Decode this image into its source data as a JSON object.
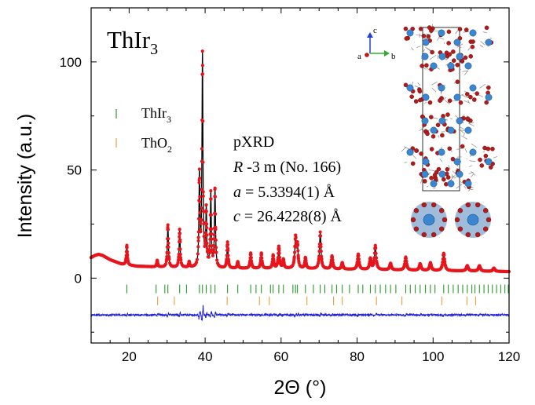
{
  "chart_data": {
    "type": "scatter",
    "title": "ThIr",
    "title_sub": "3",
    "xlabel": "2Θ (°)",
    "ylabel": "Intensity (a.u.)",
    "xlim": [
      10,
      120
    ],
    "ylim": [
      -30,
      125
    ],
    "xticks": [
      20,
      40,
      60,
      80,
      100,
      120
    ],
    "yticks": [
      0,
      50,
      100
    ],
    "legend": [
      {
        "name": "ThIr",
        "sub": "3",
        "color": "#2a9a2a"
      },
      {
        "name": "ThO",
        "sub": "2",
        "color": "#f39a3c"
      }
    ],
    "annotations": {
      "method": "pXRD",
      "space_group_symbol": "R",
      "space_group_rest": " -3 m (No. 166)",
      "a_param": "a",
      "a_value": " = 5.3394(1) Å",
      "c_param": "c",
      "c_value": " = 26.4228(8) Å"
    },
    "axes_labels_inset": {
      "a": "a",
      "b": "b",
      "c": "c"
    },
    "colors": {
      "observed": "#e8141c",
      "calculated": "#000000",
      "difference": "#1f1fd6",
      "thir3_ticks": "#2a9a2a",
      "tho2_ticks": "#f39a3c"
    },
    "background": [
      [
        10,
        9.5
      ],
      [
        11,
        10.5
      ],
      [
        12,
        11
      ],
      [
        13,
        10.5
      ],
      [
        15,
        8.5
      ],
      [
        18,
        6.5
      ],
      [
        22,
        5.5
      ],
      [
        30,
        5
      ],
      [
        45,
        4.5
      ],
      [
        60,
        4.5
      ],
      [
        80,
        4
      ],
      [
        100,
        3.5
      ],
      [
        120,
        3
      ]
    ],
    "peaks": [
      {
        "x": 19.4,
        "h": 9,
        "w": 0.15
      },
      {
        "x": 27.4,
        "h": 3,
        "w": 0.15
      },
      {
        "x": 30.2,
        "h": 19.5,
        "w": 0.16
      },
      {
        "x": 33.3,
        "h": 17.5,
        "w": 0.16
      },
      {
        "x": 35.8,
        "h": 2.5,
        "w": 0.15
      },
      {
        "x": 38.5,
        "h": 42,
        "w": 0.15
      },
      {
        "x": 39.3,
        "h": 98,
        "w": 0.15
      },
      {
        "x": 40.3,
        "h": 26,
        "w": 0.15
      },
      {
        "x": 41.5,
        "h": 34,
        "w": 0.15
      },
      {
        "x": 42.6,
        "h": 36,
        "w": 0.16
      },
      {
        "x": 45.9,
        "h": 12,
        "w": 0.17
      },
      {
        "x": 48.6,
        "h": 3,
        "w": 0.17
      },
      {
        "x": 52.0,
        "h": 7,
        "w": 0.18
      },
      {
        "x": 54.8,
        "h": 7,
        "w": 0.18
      },
      {
        "x": 57.9,
        "h": 6,
        "w": 0.18
      },
      {
        "x": 59.4,
        "h": 10,
        "w": 0.2
      },
      {
        "x": 60.6,
        "h": 4,
        "w": 0.18
      },
      {
        "x": 63.8,
        "h": 14,
        "w": 0.22
      },
      {
        "x": 64.3,
        "h": 10,
        "w": 0.2
      },
      {
        "x": 66.4,
        "h": 5,
        "w": 0.2
      },
      {
        "x": 70.3,
        "h": 17,
        "w": 0.22
      },
      {
        "x": 73.4,
        "h": 6,
        "w": 0.22
      },
      {
        "x": 76.1,
        "h": 3,
        "w": 0.22
      },
      {
        "x": 80.3,
        "h": 7,
        "w": 0.24
      },
      {
        "x": 83.5,
        "h": 5,
        "w": 0.24
      },
      {
        "x": 84.8,
        "h": 11,
        "w": 0.25
      },
      {
        "x": 88.8,
        "h": 3,
        "w": 0.25
      },
      {
        "x": 92.8,
        "h": 6,
        "w": 0.26
      },
      {
        "x": 96.6,
        "h": 3,
        "w": 0.27
      },
      {
        "x": 99.3,
        "h": 3.5,
        "w": 0.27
      },
      {
        "x": 102.8,
        "h": 8,
        "w": 0.28
      },
      {
        "x": 109.0,
        "h": 2.5,
        "w": 0.3
      },
      {
        "x": 112.2,
        "h": 2.5,
        "w": 0.3
      },
      {
        "x": 116.0,
        "h": 1.5,
        "w": 0.3
      }
    ],
    "obs_sample_step": 0.18,
    "thir3_ticks": [
      19.4,
      27.1,
      29.4,
      30.2,
      33.3,
      35.1,
      38.5,
      39.3,
      40.3,
      41.5,
      42.6,
      45.9,
      48.6,
      52.0,
      53.4,
      54.8,
      57.2,
      57.9,
      59.4,
      60.6,
      63.1,
      63.8,
      64.3,
      66.4,
      68.5,
      70.3,
      71.5,
      73.4,
      74.6,
      76.1,
      78.0,
      80.3,
      81.5,
      83.5,
      84.8,
      86.1,
      87.5,
      88.8,
      90.2,
      92.8,
      94.0,
      95.3,
      96.6,
      98.0,
      99.3,
      100.5,
      102.8,
      104.0,
      105.3,
      106.6,
      107.8,
      109.0,
      110.2,
      111.0,
      112.2,
      113.4,
      114.5,
      115.6,
      116.7,
      117.8,
      118.9,
      119.8
    ],
    "tho2_ticks": [
      27.5,
      31.9,
      45.8,
      54.3,
      56.9,
      66.8,
      73.8,
      76.1,
      85.1,
      91.8,
      102.3,
      108.9,
      111.2
    ]
  }
}
